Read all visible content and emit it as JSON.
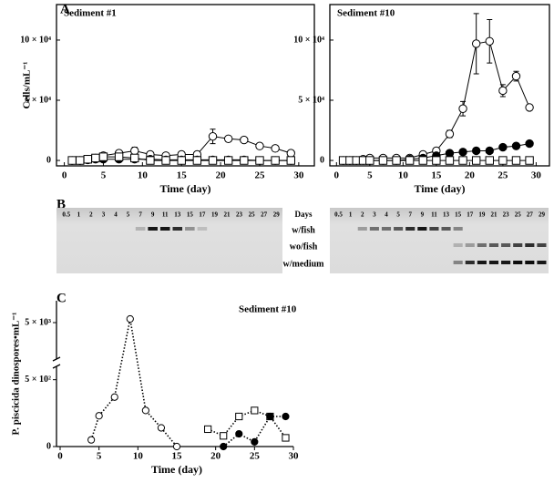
{
  "panel_labels": [
    "A",
    "B",
    "C"
  ],
  "chart_data": [
    {
      "type": "line",
      "title": "Sediment #1",
      "xlabel": "Time (day)",
      "ylabel": "Cells/mL⁻¹",
      "frame": "box",
      "line_style": "solid",
      "x": [
        1,
        2,
        3,
        4,
        5,
        7,
        9,
        11,
        13,
        15,
        17,
        19,
        21,
        23,
        25,
        27,
        29
      ],
      "xlim": [
        -1,
        32
      ],
      "xticks": [
        0,
        5,
        10,
        15,
        20,
        25,
        30
      ],
      "ylim": [
        -4500,
        129500
      ],
      "yticks": [
        0,
        {
          "value": 50000,
          "label": "5 × 10⁴"
        },
        {
          "value": 100000,
          "label": "10 × 10⁴"
        }
      ],
      "series": [
        {
          "marker": "open-circle",
          "color": "#000000",
          "values": [
            0,
            0,
            1000,
            2000,
            4000,
            6000,
            8000,
            5000,
            4000,
            5000,
            5000,
            20000,
            18000,
            17000,
            12000,
            10000,
            6000
          ],
          "errors": [
            null,
            null,
            null,
            null,
            null,
            null,
            3000,
            null,
            null,
            null,
            null,
            6000,
            2000,
            null,
            null,
            null,
            null
          ]
        },
        {
          "marker": "filled-circle",
          "color": "#000000",
          "values": [
            0,
            0,
            500,
            1000,
            1000,
            1000,
            1000,
            1000,
            500,
            500,
            500,
            500,
            500,
            500,
            0,
            0,
            0
          ]
        },
        {
          "marker": "open-square",
          "color": "#000000",
          "values": [
            0,
            0,
            1000,
            2000,
            3000,
            3000,
            2000,
            0,
            0,
            0,
            0,
            0,
            0,
            0,
            0,
            0,
            0
          ]
        }
      ]
    },
    {
      "type": "line",
      "title": "Sediment #10",
      "xlabel": "Time (day)",
      "frame": "box",
      "line_style": "solid",
      "x": [
        1,
        2,
        3,
        4,
        5,
        7,
        9,
        11,
        13,
        15,
        17,
        19,
        21,
        23,
        25,
        27,
        29
      ],
      "xlim": [
        -1,
        32
      ],
      "xticks": [
        0,
        5,
        10,
        15,
        20,
        25,
        30
      ],
      "ylim": [
        -4500,
        129500
      ],
      "yticks": [
        0,
        {
          "value": 50000,
          "label": "5 × 10⁴"
        },
        {
          "value": 100000,
          "label": "10 × 10⁴"
        }
      ],
      "series": [
        {
          "marker": "open-circle",
          "color": "#000000",
          "values": [
            0,
            0,
            0,
            1000,
            2000,
            2000,
            2000,
            2000,
            5000,
            8000,
            22000,
            43000,
            97000,
            99000,
            58000,
            70000,
            44000
          ],
          "errors": [
            null,
            null,
            null,
            null,
            null,
            null,
            null,
            null,
            null,
            null,
            3000,
            6000,
            25000,
            18000,
            5000,
            4000,
            2000
          ]
        },
        {
          "marker": "filled-circle",
          "color": "#000000",
          "values": [
            0,
            0,
            0,
            0,
            0,
            0,
            0,
            1000,
            2000,
            4000,
            6000,
            7000,
            8000,
            8000,
            11000,
            12000,
            14000
          ]
        },
        {
          "marker": "open-square",
          "color": "#000000",
          "values": [
            0,
            0,
            0,
            0,
            0,
            0,
            0,
            0,
            0,
            0,
            0,
            0,
            0,
            0,
            0,
            0,
            0
          ]
        }
      ]
    },
    {
      "type": "line",
      "title": "Sediment #10",
      "xlabel": "Time (day)",
      "ylabel": "P. piscicida dinospores•mL⁻¹",
      "frame": "axes",
      "line_style": "dotted",
      "x": [
        4,
        5,
        7,
        9,
        11,
        13,
        15,
        19,
        21,
        23,
        25,
        27,
        29
      ],
      "xlim": [
        0,
        30
      ],
      "xticks": [
        0,
        5,
        10,
        15,
        20,
        25,
        30
      ],
      "ylim": [
        0,
        5600
      ],
      "ybreak": [
        600,
        4000
      ],
      "yticks": [
        0,
        {
          "value": 500,
          "label": "5 × 10²"
        },
        {
          "value": 5000,
          "label": "5 × 10³"
        }
      ],
      "series": [
        {
          "marker": "open-circle",
          "color": "#000000",
          "values": [
            50,
            230,
            370,
            5100,
            270,
            140,
            0,
            null,
            null,
            null,
            null,
            null,
            null
          ]
        },
        {
          "marker": "open-square",
          "color": "#000000",
          "values": [
            null,
            null,
            null,
            null,
            null,
            null,
            null,
            130,
            80,
            225,
            270,
            225,
            65
          ]
        },
        {
          "marker": "filled-circle",
          "color": "#000000",
          "values": [
            null,
            null,
            null,
            null,
            null,
            null,
            null,
            null,
            0,
            95,
            35,
            225,
            225
          ]
        }
      ]
    }
  ],
  "gel": {
    "days_label": "Days",
    "lanes": [
      "0.5",
      "1",
      "2",
      "3",
      "4",
      "5",
      "7",
      "9",
      "11",
      "13",
      "15",
      "17",
      "19",
      "21",
      "23",
      "25",
      "27",
      "29"
    ],
    "rows": [
      "w/fish",
      "wo/fish",
      "w/medium"
    ]
  }
}
